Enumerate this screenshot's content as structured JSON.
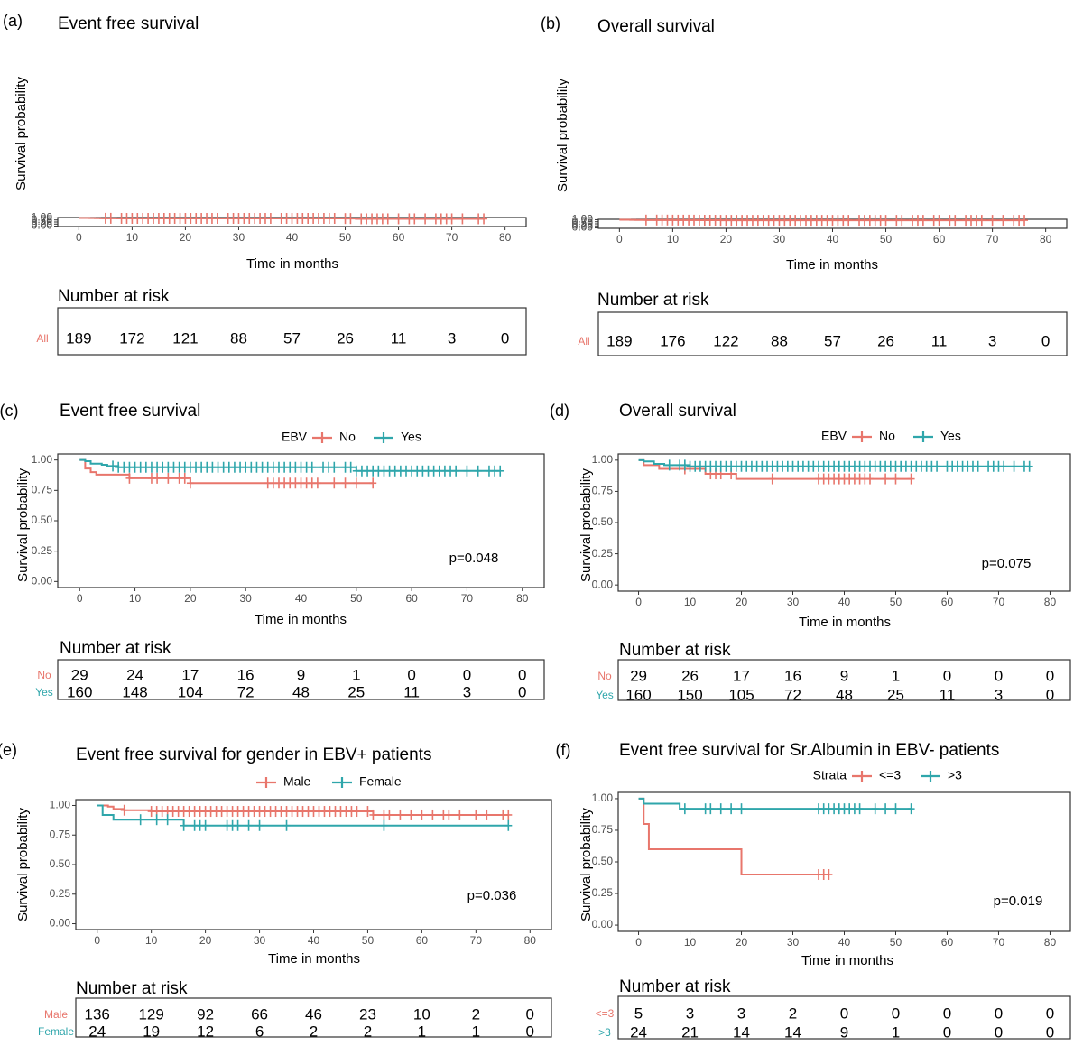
{
  "colors": {
    "red": "#e8766c",
    "teal": "#2fa6ab"
  },
  "chart_data": [
    {
      "panel": "(a)",
      "type": "line",
      "title": "Event free survival",
      "xlabel": "Time in months",
      "ylabel": "Survival probability",
      "xlim": [
        0,
        80
      ],
      "ylim": [
        0,
        1
      ],
      "xticks": [
        "0",
        "10",
        "20",
        "30",
        "40",
        "50",
        "60",
        "70",
        "80"
      ],
      "yticks": [
        "0.00",
        "0.25",
        "0.50",
        "0.75",
        "1.00"
      ],
      "legend": null,
      "pvalue": null,
      "series": [
        {
          "color": "red",
          "steps": [
            [
              0,
              1.0
            ],
            [
              1,
              0.99
            ],
            [
              2,
              0.98
            ],
            [
              3,
              0.97
            ],
            [
              4,
              0.96
            ],
            [
              5,
              0.95
            ],
            [
              7,
              0.94
            ],
            [
              49,
              0.94
            ],
            [
              50,
              0.92
            ],
            [
              52,
              0.89
            ],
            [
              76,
              0.89
            ]
          ],
          "censor": [
            5,
            6,
            8,
            9,
            10,
            11,
            12,
            13,
            14,
            15,
            16,
            17,
            18,
            19,
            20,
            21,
            22,
            23,
            24,
            25,
            26,
            28,
            29,
            30,
            31,
            32,
            33,
            34,
            35,
            36,
            38,
            39,
            40,
            41,
            42,
            43,
            44,
            45,
            46,
            47,
            48,
            50,
            51,
            53,
            54,
            55,
            56,
            57,
            58,
            60,
            62,
            63,
            65,
            67,
            68,
            69,
            70,
            72,
            75,
            76
          ]
        }
      ],
      "risk_title": "Number at risk",
      "risk_rows": [
        {
          "name": "All",
          "color": "red",
          "values": [
            "189",
            "172",
            "121",
            "88",
            "57",
            "26",
            "11",
            "3",
            "0"
          ]
        }
      ]
    },
    {
      "panel": "(b)",
      "type": "line",
      "title": "Overall survival",
      "xlabel": "Time in months",
      "ylabel": "Survival probability",
      "xlim": [
        0,
        80
      ],
      "ylim": [
        0,
        1
      ],
      "xticks": [
        "0",
        "10",
        "20",
        "30",
        "40",
        "50",
        "60",
        "70",
        "80"
      ],
      "yticks": [
        "0.00",
        "0.25",
        "0.50",
        "0.75",
        "1.00"
      ],
      "legend": null,
      "pvalue": null,
      "series": [
        {
          "color": "red",
          "steps": [
            [
              0,
              1.0
            ],
            [
              1,
              0.99
            ],
            [
              2,
              0.98
            ],
            [
              3,
              0.97
            ],
            [
              5,
              0.96
            ],
            [
              10,
              0.95
            ],
            [
              15,
              0.94
            ],
            [
              19,
              0.93
            ],
            [
              76,
              0.93
            ]
          ],
          "censor": [
            5,
            7,
            8,
            9,
            10,
            11,
            12,
            13,
            14,
            15,
            16,
            17,
            18,
            19,
            20,
            21,
            22,
            23,
            24,
            25,
            26,
            27,
            28,
            29,
            30,
            31,
            32,
            33,
            34,
            35,
            36,
            37,
            38,
            39,
            40,
            41,
            42,
            43,
            45,
            46,
            47,
            48,
            49,
            50,
            52,
            53,
            55,
            56,
            57,
            59,
            60,
            62,
            63,
            65,
            66,
            67,
            68,
            70,
            72,
            74,
            75,
            76
          ]
        }
      ],
      "risk_title": "Number at risk",
      "risk_rows": [
        {
          "name": "All",
          "color": "red",
          "values": [
            "189",
            "176",
            "122",
            "88",
            "57",
            "26",
            "11",
            "3",
            "0"
          ]
        }
      ]
    },
    {
      "panel": "(c)",
      "type": "line",
      "title": "Event free survival",
      "xlabel": "Time in months",
      "ylabel": "Survival probability",
      "xlim": [
        0,
        80
      ],
      "ylim": [
        0,
        1
      ],
      "xticks": [
        "0",
        "10",
        "20",
        "30",
        "40",
        "50",
        "60",
        "70",
        "80"
      ],
      "yticks": [
        "0.00",
        "0.25",
        "0.50",
        "0.75",
        "1.00"
      ],
      "legend": {
        "title": "EBV",
        "items": [
          {
            "label": "No",
            "color": "red"
          },
          {
            "label": "Yes",
            "color": "teal"
          }
        ]
      },
      "pvalue": "p=0.048",
      "series": [
        {
          "name": "No",
          "color": "red",
          "steps": [
            [
              0,
              1.0
            ],
            [
              1,
              0.93
            ],
            [
              2,
              0.9
            ],
            [
              3,
              0.88
            ],
            [
              9,
              0.85
            ],
            [
              20,
              0.81
            ],
            [
              53,
              0.81
            ]
          ],
          "censor": [
            9,
            13,
            14,
            16,
            18,
            19,
            20,
            34,
            35,
            36,
            37,
            38,
            39,
            40,
            41,
            42,
            43,
            46,
            48,
            50,
            53
          ]
        },
        {
          "name": "Yes",
          "color": "teal",
          "steps": [
            [
              0,
              1.0
            ],
            [
              1,
              0.99
            ],
            [
              2,
              0.97
            ],
            [
              4,
              0.96
            ],
            [
              5,
              0.95
            ],
            [
              7,
              0.94
            ],
            [
              49,
              0.94
            ],
            [
              50,
              0.91
            ],
            [
              76,
              0.91
            ]
          ],
          "censor": [
            6,
            7,
            8,
            9,
            10,
            11,
            12,
            13,
            14,
            15,
            16,
            17,
            18,
            19,
            20,
            21,
            22,
            23,
            24,
            25,
            26,
            27,
            28,
            29,
            30,
            31,
            32,
            33,
            34,
            35,
            36,
            37,
            38,
            39,
            40,
            41,
            42,
            44,
            45,
            46,
            48,
            49,
            50,
            51,
            52,
            53,
            54,
            55,
            56,
            57,
            58,
            59,
            60,
            61,
            62,
            63,
            64,
            65,
            66,
            67,
            68,
            70,
            72,
            74,
            75,
            76
          ]
        }
      ],
      "risk_title": "Number at risk",
      "risk_rows": [
        {
          "name": "No",
          "color": "red",
          "values": [
            "29",
            "24",
            "17",
            "16",
            "9",
            "1",
            "0",
            "0",
            "0"
          ]
        },
        {
          "name": "Yes",
          "color": "teal",
          "values": [
            "160",
            "148",
            "104",
            "72",
            "48",
            "25",
            "11",
            "3",
            "0"
          ]
        }
      ]
    },
    {
      "panel": "(d)",
      "type": "line",
      "title": "Overall survival",
      "xlabel": "Time in months",
      "ylabel": "Survival probability",
      "xlim": [
        0,
        80
      ],
      "ylim": [
        0,
        1
      ],
      "xticks": [
        "0",
        "10",
        "20",
        "30",
        "40",
        "50",
        "60",
        "70",
        "80"
      ],
      "yticks": [
        "0.00",
        "0.25",
        "0.50",
        "0.75",
        "1.00"
      ],
      "legend": {
        "title": "EBV",
        "items": [
          {
            "label": "No",
            "color": "red"
          },
          {
            "label": "Yes",
            "color": "teal"
          }
        ]
      },
      "pvalue": "p=0.075",
      "series": [
        {
          "name": "No",
          "color": "red",
          "steps": [
            [
              0,
              1.0
            ],
            [
              1,
              0.96
            ],
            [
              4,
              0.93
            ],
            [
              13,
              0.89
            ],
            [
              19,
              0.85
            ],
            [
              53,
              0.85
            ]
          ],
          "censor": [
            9,
            14,
            15,
            16,
            18,
            26,
            35,
            36,
            37,
            38,
            39,
            40,
            41,
            42,
            43,
            44,
            45,
            48,
            50,
            53
          ]
        },
        {
          "name": "Yes",
          "color": "teal",
          "steps": [
            [
              0,
              1.0
            ],
            [
              1,
              0.99
            ],
            [
              3,
              0.97
            ],
            [
              5,
              0.96
            ],
            [
              10,
              0.95
            ],
            [
              76,
              0.95
            ]
          ],
          "censor": [
            6,
            8,
            9,
            10,
            11,
            12,
            13,
            14,
            15,
            16,
            17,
            18,
            19,
            20,
            21,
            22,
            23,
            24,
            25,
            26,
            27,
            28,
            29,
            30,
            31,
            32,
            33,
            34,
            35,
            36,
            37,
            38,
            39,
            40,
            41,
            42,
            43,
            44,
            45,
            46,
            47,
            48,
            49,
            50,
            51,
            52,
            53,
            54,
            55,
            56,
            57,
            58,
            60,
            61,
            62,
            63,
            64,
            65,
            66,
            68,
            69,
            70,
            71,
            73,
            75,
            76
          ]
        }
      ],
      "risk_title": "Number at risk",
      "risk_rows": [
        {
          "name": "No",
          "color": "red",
          "values": [
            "29",
            "26",
            "17",
            "16",
            "9",
            "1",
            "0",
            "0",
            "0"
          ]
        },
        {
          "name": "Yes",
          "color": "teal",
          "values": [
            "160",
            "150",
            "105",
            "72",
            "48",
            "25",
            "11",
            "3",
            "0"
          ]
        }
      ]
    },
    {
      "panel": "(e)",
      "type": "line",
      "title": "Event free survival for gender in EBV+ patients",
      "xlabel": "Time in months",
      "ylabel": "Survival probability",
      "xlim": [
        0,
        80
      ],
      "ylim": [
        0,
        1
      ],
      "xticks": [
        "0",
        "10",
        "20",
        "30",
        "40",
        "50",
        "60",
        "70",
        "80"
      ],
      "yticks": [
        "0.00",
        "0.25",
        "0.50",
        "0.75",
        "1.00"
      ],
      "legend": {
        "title": "",
        "items": [
          {
            "label": "Male",
            "color": "red"
          },
          {
            "label": "Female",
            "color": "teal"
          }
        ]
      },
      "pvalue": "p=0.036",
      "series": [
        {
          "name": "Male",
          "color": "red",
          "steps": [
            [
              0,
              1.0
            ],
            [
              2,
              0.99
            ],
            [
              3,
              0.97
            ],
            [
              5,
              0.96
            ],
            [
              10,
              0.95
            ],
            [
              50,
              0.95
            ],
            [
              51,
              0.92
            ],
            [
              76,
              0.92
            ]
          ],
          "censor": [
            5,
            10,
            11,
            12,
            13,
            14,
            15,
            16,
            17,
            18,
            19,
            20,
            21,
            22,
            23,
            24,
            25,
            26,
            27,
            28,
            29,
            30,
            31,
            32,
            33,
            34,
            35,
            36,
            37,
            38,
            39,
            40,
            41,
            42,
            43,
            44,
            45,
            46,
            47,
            48,
            50,
            51,
            53,
            54,
            56,
            58,
            60,
            62,
            64,
            65,
            67,
            70,
            72,
            75,
            76
          ]
        },
        {
          "name": "Female",
          "color": "teal",
          "steps": [
            [
              0,
              1.0
            ],
            [
              1,
              0.92
            ],
            [
              3,
              0.88
            ],
            [
              16,
              0.83
            ],
            [
              76,
              0.83
            ]
          ],
          "censor": [
            8,
            11,
            13,
            16,
            18,
            19,
            20,
            24,
            25,
            26,
            28,
            30,
            35,
            53,
            76
          ]
        }
      ],
      "risk_title": "Number at risk",
      "risk_rows": [
        {
          "name": "Male",
          "color": "red",
          "values": [
            "136",
            "129",
            "92",
            "66",
            "46",
            "23",
            "10",
            "2",
            "0"
          ]
        },
        {
          "name": "Female",
          "color": "teal",
          "values": [
            "24",
            "19",
            "12",
            "6",
            "2",
            "2",
            "1",
            "1",
            "0"
          ]
        }
      ]
    },
    {
      "panel": "(f)",
      "type": "line",
      "title": "Event free survival for Sr.Albumin in EBV- patients",
      "xlabel": "Time in months",
      "ylabel": "Survival probability",
      "xlim": [
        0,
        80
      ],
      "ylim": [
        0,
        1
      ],
      "xticks": [
        "0",
        "10",
        "20",
        "30",
        "40",
        "50",
        "60",
        "70",
        "80"
      ],
      "yticks": [
        "0.00",
        "0.25",
        "0.50",
        "0.75",
        "1.00"
      ],
      "legend": {
        "title": "Strata",
        "items": [
          {
            "label": "<=3",
            "color": "red"
          },
          {
            "label": ">3",
            "color": "teal"
          }
        ]
      },
      "pvalue": "p=0.019",
      "series": [
        {
          "name": "<=3",
          "color": "red",
          "steps": [
            [
              0,
              1.0
            ],
            [
              1,
              0.8
            ],
            [
              2,
              0.6
            ],
            [
              20,
              0.4
            ],
            [
              37,
              0.4
            ]
          ],
          "censor": [
            35,
            36,
            37
          ]
        },
        {
          "name": ">3",
          "color": "teal",
          "steps": [
            [
              0,
              1.0
            ],
            [
              1,
              0.96
            ],
            [
              8,
              0.92
            ],
            [
              53,
              0.92
            ]
          ],
          "censor": [
            9,
            13,
            14,
            16,
            18,
            20,
            35,
            36,
            37,
            38,
            39,
            40,
            41,
            42,
            43,
            46,
            48,
            50,
            53
          ]
        }
      ],
      "risk_title": "Number at risk",
      "risk_rows": [
        {
          "name": "<=3",
          "color": "red",
          "values": [
            "5",
            "3",
            "3",
            "2",
            "0",
            "0",
            "0",
            "0",
            "0"
          ]
        },
        {
          "name": ">3",
          "color": "teal",
          "values": [
            "24",
            "21",
            "14",
            "14",
            "9",
            "1",
            "0",
            "0",
            "0"
          ]
        }
      ]
    }
  ]
}
